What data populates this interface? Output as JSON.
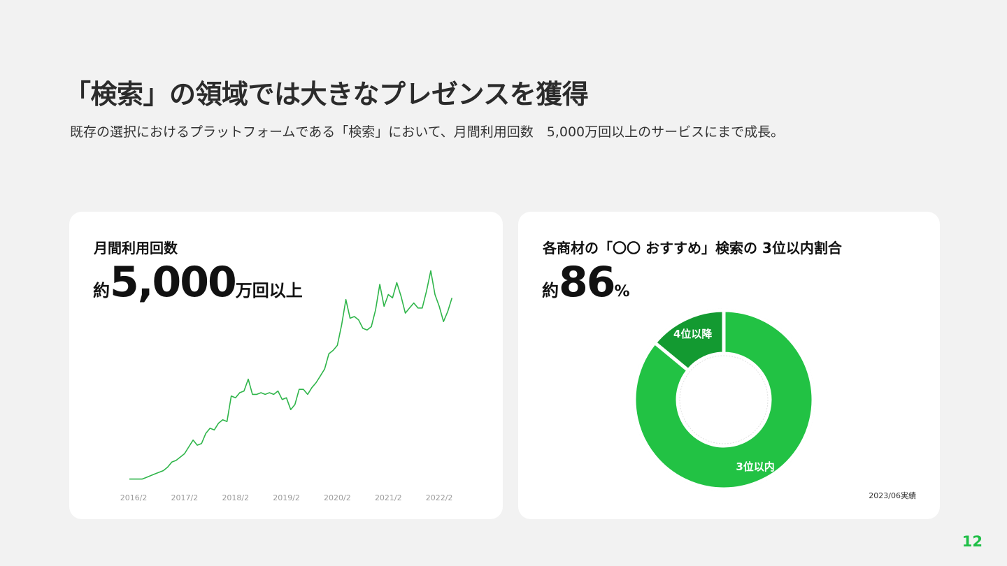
{
  "slide": {
    "title": "「検索」の領域では大きなプレゼンスを獲得",
    "subtitle": "既存の選択におけるプラットフォームである「検索」において、月間利用回数　5,000万回以上のサービスにまで成長。",
    "page_number": "12"
  },
  "left_card": {
    "label": "月間利用回数",
    "prefix": "約",
    "number": "5,000",
    "suffix": "万回以上"
  },
  "right_card": {
    "label": "各商材の「〇〇 おすすめ」検索の 3位以内割合",
    "prefix": "約",
    "number": "86",
    "suffix": "%",
    "note": "2023/06実績"
  },
  "colors": {
    "accent": "#1fbf47",
    "donut_main": "#22c244",
    "donut_minor": "#139a31",
    "line": "#2fb54a",
    "background": "#f2f2f2"
  },
  "chart_data": [
    {
      "type": "line",
      "title": "月間利用回数",
      "x_tick_labels": [
        "2016/2",
        "2017/2",
        "2018/2",
        "2019/2",
        "2020/2",
        "2021/2",
        "2022/2"
      ],
      "x_start": "2016/1",
      "x_step": "1 month",
      "values": [
        1,
        1,
        1,
        1,
        2,
        3,
        4,
        5,
        6,
        8,
        11,
        12,
        14,
        16,
        20,
        24,
        21,
        22,
        28,
        31,
        30,
        34,
        36,
        35,
        50,
        49,
        52,
        53,
        60,
        51,
        51,
        52,
        51,
        52,
        51,
        53,
        48,
        49,
        42,
        45,
        54,
        54,
        51,
        55,
        58,
        62,
        66,
        75,
        77,
        80,
        92,
        107,
        96,
        97,
        95,
        90,
        89,
        91,
        101,
        116,
        103,
        110,
        108,
        117,
        109,
        99,
        102,
        105,
        102,
        102,
        112,
        124,
        110,
        103,
        94,
        100,
        108
      ],
      "ylim": [
        0,
        130
      ],
      "grid": false,
      "axes_visible": false
    },
    {
      "type": "pie",
      "donut": true,
      "slices": [
        {
          "label": "3位以内",
          "value": 86
        },
        {
          "label": "4位以降",
          "value": 14
        }
      ]
    }
  ]
}
